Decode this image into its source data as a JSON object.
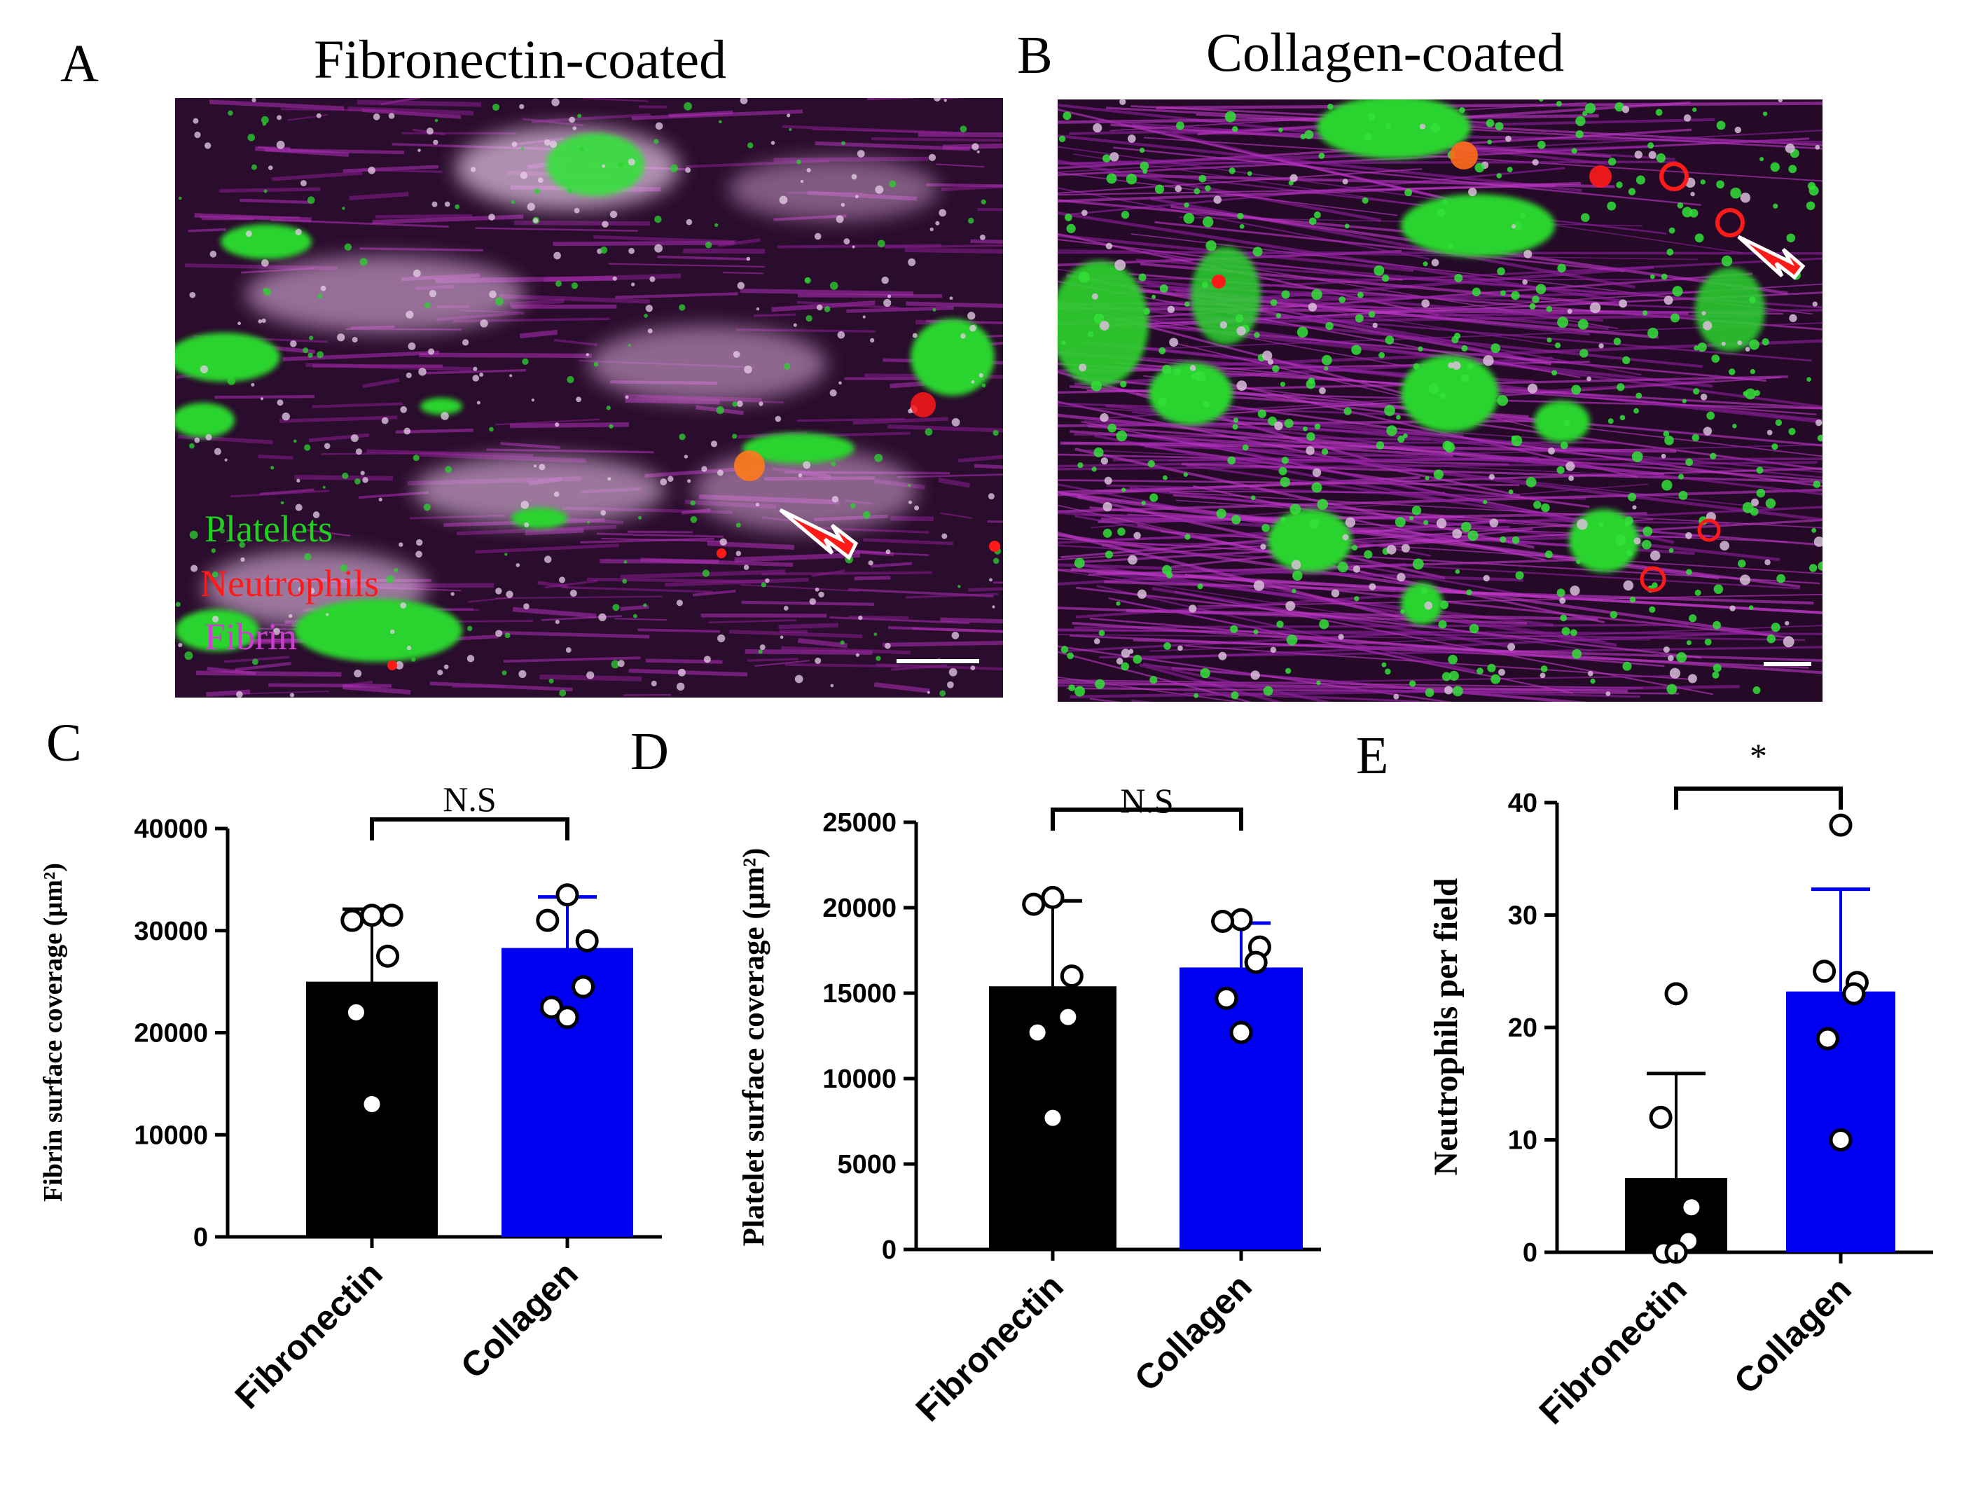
{
  "panels": {
    "A": "A",
    "B": "B",
    "C": "C",
    "D": "D",
    "E": "E"
  },
  "images": {
    "A": {
      "title": "Fibronectin-coated",
      "legend": [
        {
          "label": "Platelets",
          "color": "#22d022"
        },
        {
          "label": "Neutrophils",
          "color": "#ff1a1a"
        },
        {
          "label": "Fibrin",
          "color": "#d040d0"
        }
      ]
    },
    "B": {
      "title": "Collagen-coated"
    }
  },
  "colors": {
    "fibronectin_bar": "#000000",
    "collagen_bar": "#0000f0",
    "collagen_err": "#0000f0",
    "arrow": "#ff1a1a",
    "platelets": "#22d022",
    "neutrophils": "#ff1a1a",
    "fibrin": "#b020b0"
  },
  "chart_data": [
    {
      "panel": "C",
      "type": "bar",
      "ylabel": "Fibrin surface coverage (µm²)",
      "categories": [
        "Fibronectin",
        "Collagen"
      ],
      "values": [
        25000,
        28300
      ],
      "errors": [
        7100,
        5000
      ],
      "points": [
        [
          31500,
          31000,
          31500,
          27500,
          22000,
          13000
        ],
        [
          33500,
          31000,
          29000,
          24500,
          22500,
          21500
        ]
      ],
      "ylim": [
        0,
        40000
      ],
      "yticks": [
        0,
        10000,
        20000,
        30000,
        40000
      ],
      "significance": "N.S"
    },
    {
      "panel": "D",
      "type": "bar",
      "ylabel": "Platelet surface coverage (µm²)",
      "categories": [
        "Fibronectin",
        "Collagen"
      ],
      "values": [
        15400,
        16500
      ],
      "errors": [
        5000,
        2600
      ],
      "points": [
        [
          20600,
          20200,
          16000,
          13600,
          12700,
          7700
        ],
        [
          19300,
          19200,
          17700,
          16800,
          14700,
          12700
        ]
      ],
      "ylim": [
        0,
        25000
      ],
      "yticks": [
        0,
        5000,
        10000,
        15000,
        20000,
        25000
      ],
      "significance": "N.S"
    },
    {
      "panel": "E",
      "type": "bar",
      "ylabel": "Neutrophils per field",
      "categories": [
        "Fibronectin",
        "Collagen"
      ],
      "values": [
        6.6,
        23.2
      ],
      "errors": [
        9.3,
        9.1
      ],
      "points": [
        [
          23,
          12,
          4,
          1,
          0,
          0
        ],
        [
          38,
          25,
          24,
          23,
          19,
          10
        ]
      ],
      "ylim": [
        0,
        40
      ],
      "yticks": [
        0,
        10,
        20,
        30,
        40
      ],
      "significance": "*"
    }
  ]
}
